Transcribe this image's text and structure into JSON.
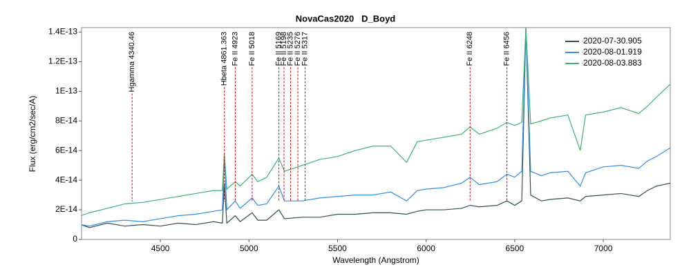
{
  "chart_data": {
    "type": "line",
    "title": "NovaCas2020   D_Boyd",
    "x_label": "Wavelength (Angstrom)",
    "y_label": "Flux (erg/cm2/sec/A)",
    "xlim": [
      4055,
      7378
    ],
    "ylim": [
      0,
      1.43e-13
    ],
    "xticks": [
      4500,
      5000,
      5500,
      6000,
      6500,
      7000
    ],
    "yticks": [
      0,
      {
        "value": 2e-14,
        "label": "2E-14"
      },
      {
        "value": 4e-14,
        "label": "4E-14"
      },
      {
        "value": 6e-14,
        "label": "6E-14"
      },
      {
        "value": 8e-14,
        "label": "8E-14"
      },
      {
        "value": 1e-13,
        "label": "1E-13"
      },
      {
        "value": 1.2e-13,
        "label": "1.2E-13"
      },
      {
        "value": 1.4e-13,
        "label": "1.4E-13"
      }
    ],
    "grid": false,
    "legend": "upper right",
    "annotation_color": "#cc0000",
    "annotations": [
      {
        "x": 4340.46,
        "label": "Hgamma 4340.46"
      },
      {
        "x": 4861.363,
        "label": "Hbeta 4861.363"
      },
      {
        "x": 4923,
        "label": "Fe II 4923"
      },
      {
        "x": 5018,
        "label": "Fe II 5018"
      },
      {
        "x": 5169,
        "label": "Fe II 5169"
      },
      {
        "x": 5198,
        "label": "Fe II 5198"
      },
      {
        "x": 5235,
        "label": "Fe II 5235"
      },
      {
        "x": 5276,
        "label": "Fe II 5276"
      },
      {
        "x": 5317,
        "label": "Fe II 5317"
      },
      {
        "x": 6248,
        "label": "Fe II 6248"
      },
      {
        "x": 6456,
        "label": "Fe II 6456"
      }
    ],
    "x": [
      4050,
      4100,
      4200,
      4300,
      4400,
      4500,
      4600,
      4700,
      4800,
      4850,
      4861,
      4875,
      4923,
      4950,
      5018,
      5050,
      5100,
      5169,
      5200,
      5300,
      5400,
      5500,
      5600,
      5700,
      5800,
      5890,
      5950,
      6000,
      6100,
      6200,
      6248,
      6300,
      6400,
      6456,
      6500,
      6540,
      6563,
      6590,
      6650,
      6700,
      6800,
      6870,
      6900,
      7000,
      7100,
      7200,
      7250,
      7300,
      7380
    ],
    "series": [
      {
        "name": "2020-07-30.905",
        "color": "#2f4f4f",
        "values": [
          1e-14,
          8e-15,
          1.1e-14,
          9e-15,
          1e-14,
          9e-15,
          1.1e-14,
          1e-14,
          1.2e-14,
          1.1e-14,
          3.8e-14,
          1.1e-14,
          1.6e-14,
          1.2e-14,
          1.8e-14,
          1.3e-14,
          1.3e-14,
          2e-14,
          1.4e-14,
          1.5e-14,
          1.5e-14,
          1.7e-14,
          1.7e-14,
          1.8e-14,
          1.8e-14,
          1.7e-14,
          1.9e-14,
          2e-14,
          2e-14,
          2.1e-14,
          2.3e-14,
          2.2e-14,
          2.3e-14,
          2.6e-14,
          2.3e-14,
          2.6e-14,
          1.43e-13,
          3e-14,
          2.6e-14,
          2.7e-14,
          2.8e-14,
          2.6e-14,
          2.9e-14,
          3e-14,
          3.1e-14,
          2.9e-14,
          3.3e-14,
          3.6e-14,
          3.8e-14
        ]
      },
      {
        "name": "2020-08-01.919",
        "color": "#2f8ee8",
        "values": [
          1e-14,
          9e-15,
          1.2e-14,
          1.3e-14,
          1.2e-14,
          1.4e-14,
          1.6e-14,
          1.7e-14,
          1.9e-14,
          2e-14,
          5.6e-14,
          2e-14,
          2.6e-14,
          2.1e-14,
          2.8e-14,
          2.3e-14,
          2.4e-14,
          3.6e-14,
          2.6e-14,
          2.6e-14,
          2.8e-14,
          2.9e-14,
          3e-14,
          3e-14,
          3.2e-14,
          2.6e-14,
          3.3e-14,
          3.4e-14,
          3.5e-14,
          3.8e-14,
          4.2e-14,
          3.7e-14,
          3.9e-14,
          4.4e-14,
          4.2e-14,
          4.6e-14,
          1.43e-13,
          4.6e-14,
          4.3e-14,
          4.5e-14,
          4.6e-14,
          3.6e-14,
          4.5e-14,
          4.9e-14,
          5e-14,
          4.8e-14,
          5.3e-14,
          5.6e-14,
          6.2e-14
        ]
      },
      {
        "name": "2020-08-03.883",
        "color": "#3cb371",
        "values": [
          1.6e-14,
          1.8e-14,
          2.1e-14,
          2.4e-14,
          2.5e-14,
          2.7e-14,
          2.9e-14,
          3.1e-14,
          3.3e-14,
          3.3e-14,
          5.8e-14,
          3.4e-14,
          3.9e-14,
          3.6e-14,
          4.4e-14,
          3.9e-14,
          4.2e-14,
          5.5e-14,
          4.6e-14,
          5e-14,
          5.4e-14,
          5.6e-14,
          6e-14,
          6.3e-14,
          6.3e-14,
          5.2e-14,
          6.6e-14,
          6.7e-14,
          6.9e-14,
          7.1e-14,
          7.6e-14,
          7.1e-14,
          7.5e-14,
          7.9e-14,
          7.7e-14,
          7.9e-14,
          1.43e-13,
          7.8e-14,
          8e-14,
          8.2e-14,
          8.4e-14,
          6e-14,
          8.4e-14,
          8.6e-14,
          8.9e-14,
          8.5e-14,
          9e-14,
          9.6e-14,
          1.05e-13
        ]
      }
    ]
  }
}
